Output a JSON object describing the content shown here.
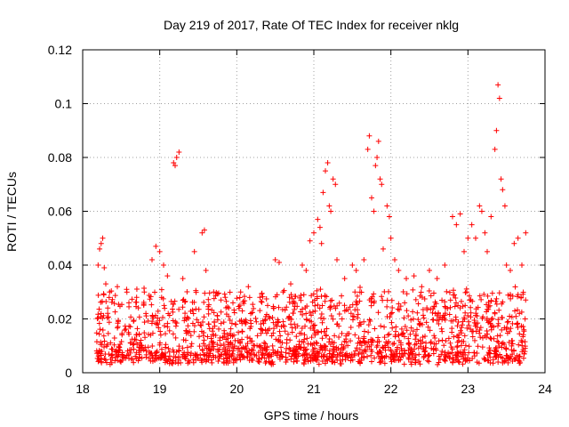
{
  "chart_data": {
    "type": "scatter",
    "title": "Day 219 of 2017, Rate Of TEC Index for receiver nklg",
    "xlabel": "GPS time / hours",
    "ylabel": "ROTI / TECUs",
    "xlim": [
      18,
      24
    ],
    "ylim": [
      0,
      0.12
    ],
    "xticks": [
      "18",
      "19",
      "20",
      "21",
      "22",
      "23",
      "24"
    ],
    "yticks": [
      "0",
      "0.02",
      "0.04",
      "0.06",
      "0.08",
      "0.1",
      "0.12"
    ],
    "grid": true,
    "marker": "+",
    "color": "#ff0000",
    "series": [
      {
        "name": "ROTI",
        "points": [
          [
            18.2,
            0.04
          ],
          [
            18.22,
            0.046
          ],
          [
            18.24,
            0.048
          ],
          [
            18.26,
            0.05
          ],
          [
            18.28,
            0.039
          ],
          [
            18.3,
            0.033
          ],
          [
            18.35,
            0.03
          ],
          [
            18.45,
            0.032
          ],
          [
            18.6,
            0.026
          ],
          [
            18.7,
            0.028
          ],
          [
            18.8,
            0.03
          ],
          [
            18.9,
            0.042
          ],
          [
            18.95,
            0.047
          ],
          [
            19.0,
            0.045
          ],
          [
            19.05,
            0.04
          ],
          [
            19.1,
            0.036
          ],
          [
            19.18,
            0.078
          ],
          [
            19.2,
            0.077
          ],
          [
            19.22,
            0.08
          ],
          [
            19.25,
            0.082
          ],
          [
            19.3,
            0.035
          ],
          [
            19.45,
            0.045
          ],
          [
            19.55,
            0.052
          ],
          [
            19.58,
            0.053
          ],
          [
            19.6,
            0.038
          ],
          [
            19.7,
            0.03
          ],
          [
            19.85,
            0.028
          ],
          [
            19.95,
            0.026
          ],
          [
            20.05,
            0.03
          ],
          [
            20.15,
            0.032
          ],
          [
            20.3,
            0.028
          ],
          [
            20.5,
            0.042
          ],
          [
            20.55,
            0.041
          ],
          [
            20.6,
            0.03
          ],
          [
            20.7,
            0.033
          ],
          [
            20.85,
            0.04
          ],
          [
            20.9,
            0.038
          ],
          [
            20.95,
            0.049
          ],
          [
            21.0,
            0.052
          ],
          [
            21.05,
            0.057
          ],
          [
            21.08,
            0.054
          ],
          [
            21.1,
            0.048
          ],
          [
            21.12,
            0.067
          ],
          [
            21.15,
            0.075
          ],
          [
            21.18,
            0.078
          ],
          [
            21.2,
            0.062
          ],
          [
            21.22,
            0.06
          ],
          [
            21.25,
            0.072
          ],
          [
            21.28,
            0.07
          ],
          [
            21.3,
            0.042
          ],
          [
            21.4,
            0.035
          ],
          [
            21.5,
            0.04
          ],
          [
            21.55,
            0.038
          ],
          [
            21.65,
            0.042
          ],
          [
            21.7,
            0.083
          ],
          [
            21.72,
            0.088
          ],
          [
            21.75,
            0.065
          ],
          [
            21.78,
            0.06
          ],
          [
            21.8,
            0.077
          ],
          [
            21.82,
            0.08
          ],
          [
            21.84,
            0.086
          ],
          [
            21.86,
            0.072
          ],
          [
            21.88,
            0.07
          ],
          [
            21.9,
            0.046
          ],
          [
            21.95,
            0.062
          ],
          [
            21.98,
            0.058
          ],
          [
            22.0,
            0.05
          ],
          [
            22.05,
            0.042
          ],
          [
            22.1,
            0.038
          ],
          [
            22.2,
            0.035
          ],
          [
            22.3,
            0.036
          ],
          [
            22.4,
            0.032
          ],
          [
            22.5,
            0.038
          ],
          [
            22.6,
            0.035
          ],
          [
            22.7,
            0.04
          ],
          [
            22.8,
            0.058
          ],
          [
            22.85,
            0.055
          ],
          [
            22.9,
            0.059
          ],
          [
            22.95,
            0.045
          ],
          [
            23.0,
            0.05
          ],
          [
            23.05,
            0.055
          ],
          [
            23.1,
            0.05
          ],
          [
            23.15,
            0.062
          ],
          [
            23.18,
            0.06
          ],
          [
            23.22,
            0.052
          ],
          [
            23.25,
            0.045
          ],
          [
            23.3,
            0.058
          ],
          [
            23.35,
            0.083
          ],
          [
            23.37,
            0.09
          ],
          [
            23.39,
            0.107
          ],
          [
            23.41,
            0.102
          ],
          [
            23.43,
            0.072
          ],
          [
            23.45,
            0.068
          ],
          [
            23.48,
            0.062
          ],
          [
            23.5,
            0.04
          ],
          [
            23.55,
            0.038
          ],
          [
            23.6,
            0.048
          ],
          [
            23.65,
            0.05
          ],
          [
            23.7,
            0.04
          ],
          [
            23.75,
            0.052
          ]
        ]
      }
    ],
    "background_band": {
      "x_range": [
        18.18,
        23.75
      ],
      "y_range": [
        0.003,
        0.035
      ],
      "density_note": "dense cluster of points"
    }
  }
}
